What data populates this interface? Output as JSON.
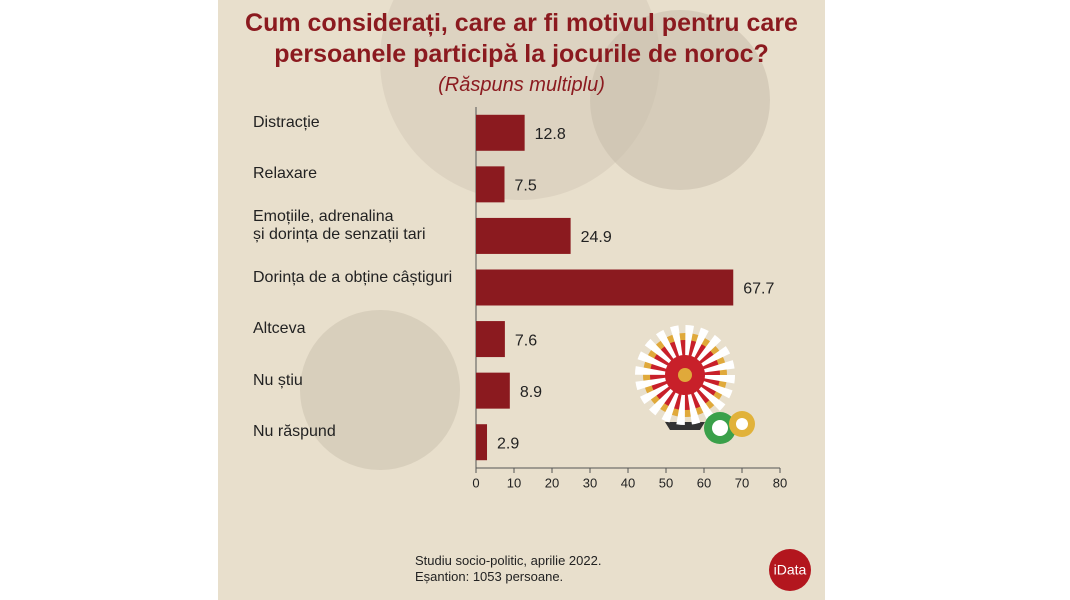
{
  "chart_data": {
    "type": "bar",
    "orientation": "horizontal",
    "title": "Cum considerați, care ar fi motivul pentru care\npersoanele participă la jocurile de noroc?",
    "subtitle": "(Răspuns multiplu)",
    "categories": [
      "Distracție",
      "Relaxare",
      "Emoțiile, adrenalina\nși dorința de senzații tari",
      "Dorința de a obține câștiguri",
      "Altceva",
      "Nu știu",
      "Nu răspund"
    ],
    "values": [
      12.8,
      7.5,
      24.9,
      67.7,
      7.6,
      8.9,
      2.9
    ],
    "color": "#8b1a1f",
    "xlim": [
      0,
      80
    ],
    "xticks": [
      0,
      10,
      20,
      30,
      40,
      50,
      60,
      70,
      80
    ],
    "footer": "Studiu socio-politic, aprilie 2022.\nEșantion: 1053 persoane.",
    "logo": "iData"
  }
}
